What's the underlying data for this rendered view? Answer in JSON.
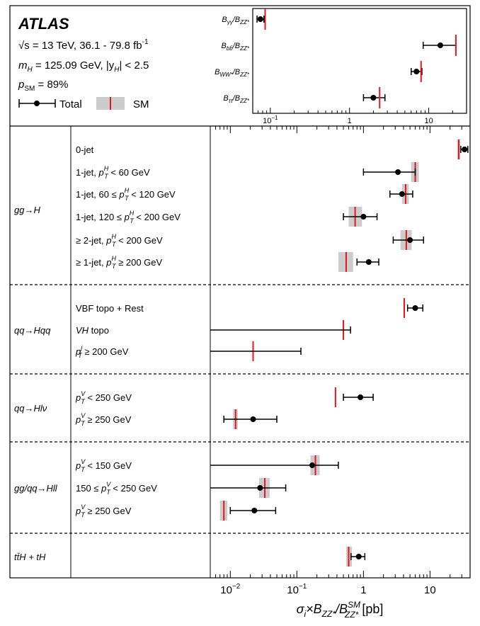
{
  "chart_data": [
    {
      "type": "scatter",
      "panel": "inset-ratios",
      "x_scale": "log",
      "xlim": [
        0.06,
        30
      ],
      "x_tick_labels": [
        "10",
        "1",
        "10"
      ],
      "x_tick_label_exponents": [
        "−1",
        "",
        ""
      ],
      "rows": [
        {
          "label_base": "B",
          "label_sub1": "γγ",
          "label_mid": "/B",
          "label_sub2": "ZZ*",
          "value": 0.075,
          "err_lo": 0.068,
          "err_hi": 0.083,
          "sm": 0.086
        },
        {
          "label_base": "B",
          "label_sub1": "bb̄",
          "label_mid": "/B",
          "label_sub2": "ZZ*",
          "value": 14.0,
          "err_lo": 8.5,
          "err_hi": 22.0,
          "sm": 22.0
        },
        {
          "label_base": "B",
          "label_sub1": "WW*",
          "label_mid": "/B",
          "label_sub2": "ZZ*",
          "value": 7.0,
          "err_lo": 6.0,
          "err_hi": 8.2,
          "sm": 8.0
        },
        {
          "label_base": "B",
          "label_sub1": "ττ",
          "label_mid": "/B",
          "label_sub2": "ZZ*",
          "value": 2.0,
          "err_lo": 1.5,
          "err_hi": 2.8,
          "sm": 2.4
        }
      ]
    },
    {
      "type": "scatter",
      "panel": "main-cross-sections",
      "x_scale": "log",
      "xlim": [
        0.005,
        40
      ],
      "x_tick_labels": [
        "10",
        "10",
        "1",
        "10"
      ],
      "x_tick_label_exponents": [
        "−2",
        "−1",
        "",
        ""
      ],
      "xlabel": {
        "base": "σ",
        "sub_i": "i",
        "times": "×B",
        "sub1": "ZZ*",
        "mid": "/B",
        "sup2": "SM",
        "sub2": "ZZ*",
        "unit": " [pb]"
      },
      "groups": [
        {
          "label": "gg→H",
          "rows": [
            {
              "label": "0-jet",
              "value": 33.0,
              "err_lo": 29.0,
              "err_hi": 37.0,
              "sm": 27.0,
              "sm_lo": 25.5,
              "sm_hi": 28.5
            },
            {
              "label": "1-jet, p_T^H < 60 GeV",
              "value": 3.3,
              "err_lo": 1.0,
              "err_hi": 6.0,
              "sm": 6.0,
              "sm_lo": 5.2,
              "sm_hi": 6.8
            },
            {
              "label": "1-jet, 60 ≤ p_T^H < 120 GeV",
              "value": 3.8,
              "err_lo": 2.5,
              "err_hi": 5.5,
              "sm": 4.3,
              "sm_lo": 3.8,
              "sm_hi": 4.8
            },
            {
              "label": "1-jet, 120 ≤ p_T^H < 200 GeV",
              "value": 1.0,
              "err_lo": 0.5,
              "err_hi": 1.6,
              "sm": 0.75,
              "sm_lo": 0.6,
              "sm_hi": 0.95
            },
            {
              "label": "≥ 2-jet, p_T^H < 200 GeV",
              "value": 5.0,
              "err_lo": 2.8,
              "err_hi": 8.0,
              "sm": 4.4,
              "sm_lo": 3.6,
              "sm_hi": 5.3
            },
            {
              "label": "≥ 1-jet, p_T^H ≥ 200 GeV",
              "value": 1.2,
              "err_lo": 0.8,
              "err_hi": 1.7,
              "sm": 0.55,
              "sm_lo": 0.42,
              "sm_hi": 0.7
            }
          ]
        },
        {
          "label": "qq→Hqq",
          "rows": [
            {
              "label": "VBF topo + Rest",
              "value": 6.0,
              "err_lo": 4.6,
              "err_hi": 7.8,
              "sm": 4.1
            },
            {
              "label": "VH topo",
              "value": 0.0,
              "err_lo": 0.0,
              "err_hi": 0.64,
              "sm": 0.5
            },
            {
              "label": "p_T^j ≥ 200 GeV",
              "value": 0.0,
              "err_lo": 0.0,
              "err_hi": 0.115,
              "sm": 0.022
            }
          ]
        },
        {
          "label": "qq→Hlν",
          "rows": [
            {
              "label": "p_T^V < 250 GeV",
              "value": 0.9,
              "err_lo": 0.5,
              "err_hi": 1.4,
              "sm": 0.38
            },
            {
              "label": "p_T^V ≥ 250 GeV",
              "value": 0.022,
              "err_lo": 0.008,
              "err_hi": 0.05,
              "sm": 0.012,
              "sm_lo": 0.011,
              "sm_hi": 0.013
            }
          ]
        },
        {
          "label": "gg/qq→Hll",
          "rows": [
            {
              "label": "p_T^V < 150 GeV",
              "value": 0.17,
              "err_lo": 0.005,
              "err_hi": 0.42,
              "sm": 0.19,
              "sm_lo": 0.16,
              "sm_hi": 0.22
            },
            {
              "label": "150 ≤ p_T^V < 250 GeV",
              "value": 0.028,
              "err_lo": 0.005,
              "err_hi": 0.068,
              "sm": 0.033,
              "sm_lo": 0.027,
              "sm_hi": 0.039
            },
            {
              "label": "p_T^V ≥ 250 GeV",
              "value": 0.023,
              "err_lo": 0.01,
              "err_hi": 0.048,
              "sm": 0.008,
              "sm_lo": 0.007,
              "sm_hi": 0.009
            }
          ]
        },
        {
          "label": "tt̄H + tH",
          "rows": [
            {
              "label": "",
              "value": 0.85,
              "err_lo": 0.65,
              "err_hi": 1.05,
              "sm": 0.6,
              "sm_lo": 0.55,
              "sm_hi": 0.67
            }
          ]
        }
      ]
    }
  ],
  "legend": {
    "experiment": "ATLAS",
    "energy_line": "√s = 13 TeV, 36.1 - 79.8 fb",
    "energy_sup": "-1",
    "mass_line": "m",
    "mass_sub": "H",
    "mass_rest": " = 125.09 GeV, |y",
    "mass_sub2": "H",
    "mass_tail": "| < 2.5",
    "p_base": "p",
    "p_sub": "SM",
    "p_rest": " = 89%",
    "total_label": "Total",
    "sm_label": "SM"
  },
  "colors": {
    "sm_line": "#e8141c",
    "sm_band": "#cccccc",
    "marker": "#000000"
  }
}
